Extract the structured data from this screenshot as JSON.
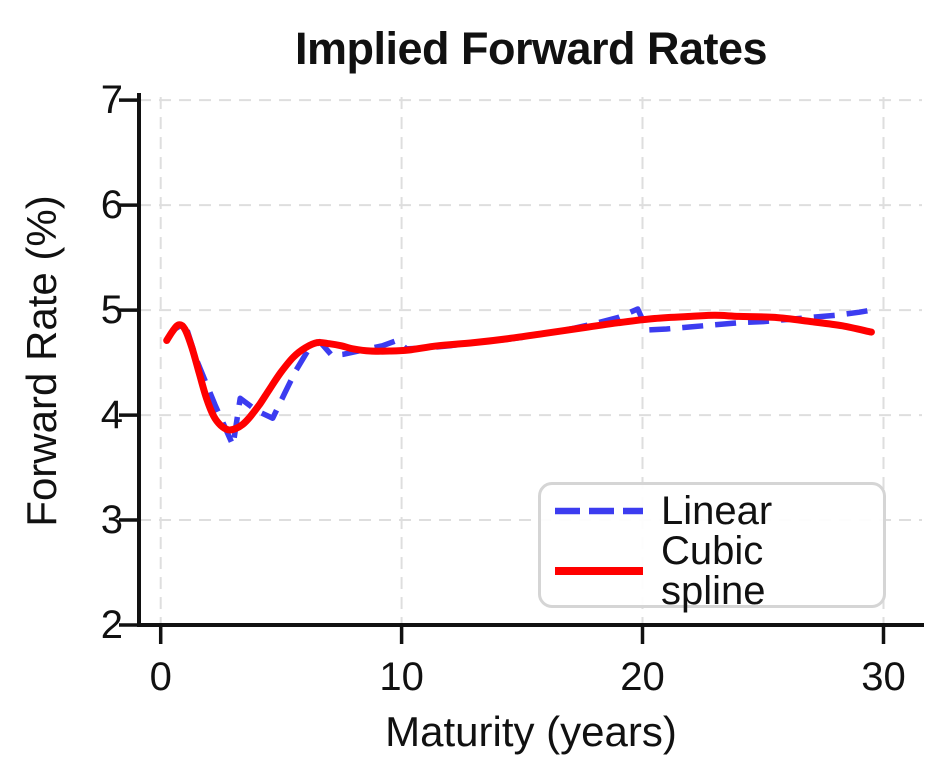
{
  "chart_data": {
    "type": "line",
    "title": "Implied Forward Rates",
    "xlabel": "Maturity (years)",
    "ylabel": "Forward Rate (%)",
    "xlim": [
      -0.9,
      31.6
    ],
    "ylim": [
      2,
      7.03
    ],
    "xticks": [
      0,
      10,
      20,
      30
    ],
    "yticks": [
      2,
      3,
      4,
      5,
      6,
      7
    ],
    "grid": true,
    "grid_color": "#dedede",
    "legend_position": "lower right",
    "series": [
      {
        "name": "Linear",
        "color": "#3c3cf0",
        "line_style": "dashed",
        "line_width": 5.5,
        "smooth": false,
        "points": [
          [
            0.25,
            4.72
          ],
          [
            0.6,
            4.82
          ],
          [
            1.0,
            4.88
          ],
          [
            1.5,
            4.52
          ],
          [
            2.0,
            4.24
          ],
          [
            2.25,
            4.1
          ],
          [
            2.6,
            3.92
          ],
          [
            3.0,
            3.71
          ],
          [
            3.3,
            4.16
          ],
          [
            4.0,
            4.04
          ],
          [
            4.65,
            3.97
          ],
          [
            5.15,
            4.21
          ],
          [
            5.6,
            4.42
          ],
          [
            6.1,
            4.61
          ],
          [
            6.6,
            4.7
          ],
          [
            7.1,
            4.57
          ],
          [
            7.6,
            4.58
          ],
          [
            8.4,
            4.62
          ],
          [
            9.2,
            4.66
          ],
          [
            9.8,
            4.71
          ],
          [
            10.2,
            4.63
          ],
          [
            11.0,
            4.64
          ],
          [
            12.0,
            4.66
          ],
          [
            13.0,
            4.69
          ],
          [
            14.0,
            4.71
          ],
          [
            15.0,
            4.74
          ],
          [
            16.0,
            4.78
          ],
          [
            17.0,
            4.82
          ],
          [
            18.0,
            4.87
          ],
          [
            19.0,
            4.93
          ],
          [
            19.8,
            5.01
          ],
          [
            20.2,
            4.81
          ],
          [
            21.0,
            4.82
          ],
          [
            22.0,
            4.84
          ],
          [
            23.0,
            4.86
          ],
          [
            24.0,
            4.88
          ],
          [
            25.0,
            4.89
          ],
          [
            26.0,
            4.91
          ],
          [
            27.0,
            4.93
          ],
          [
            28.0,
            4.95
          ],
          [
            29.0,
            4.98
          ],
          [
            29.5,
            5.0
          ]
        ]
      },
      {
        "name": "Cubic spline",
        "color": "#ff0000",
        "line_style": "solid",
        "line_width": 7,
        "smooth": true,
        "points": [
          [
            0.25,
            4.71
          ],
          [
            0.5,
            4.8
          ],
          [
            0.75,
            4.86
          ],
          [
            1.0,
            4.82
          ],
          [
            1.3,
            4.64
          ],
          [
            1.6,
            4.4
          ],
          [
            1.9,
            4.16
          ],
          [
            2.2,
            3.99
          ],
          [
            2.5,
            3.9
          ],
          [
            2.8,
            3.86
          ],
          [
            3.1,
            3.87
          ],
          [
            3.4,
            3.91
          ],
          [
            3.7,
            3.98
          ],
          [
            4.1,
            4.1
          ],
          [
            4.5,
            4.24
          ],
          [
            5.0,
            4.41
          ],
          [
            5.5,
            4.55
          ],
          [
            6.0,
            4.64
          ],
          [
            6.5,
            4.69
          ],
          [
            7.0,
            4.68
          ],
          [
            7.5,
            4.66
          ],
          [
            8.0,
            4.63
          ],
          [
            8.7,
            4.61
          ],
          [
            9.5,
            4.61
          ],
          [
            10.3,
            4.62
          ],
          [
            11.5,
            4.66
          ],
          [
            13.0,
            4.69
          ],
          [
            14.5,
            4.73
          ],
          [
            16.0,
            4.78
          ],
          [
            17.5,
            4.83
          ],
          [
            19.0,
            4.88
          ],
          [
            20.5,
            4.92
          ],
          [
            22.0,
            4.94
          ],
          [
            23.0,
            4.95
          ],
          [
            24.0,
            4.94
          ],
          [
            25.5,
            4.93
          ],
          [
            27.0,
            4.89
          ],
          [
            28.3,
            4.85
          ],
          [
            29.5,
            4.79
          ]
        ]
      }
    ]
  }
}
